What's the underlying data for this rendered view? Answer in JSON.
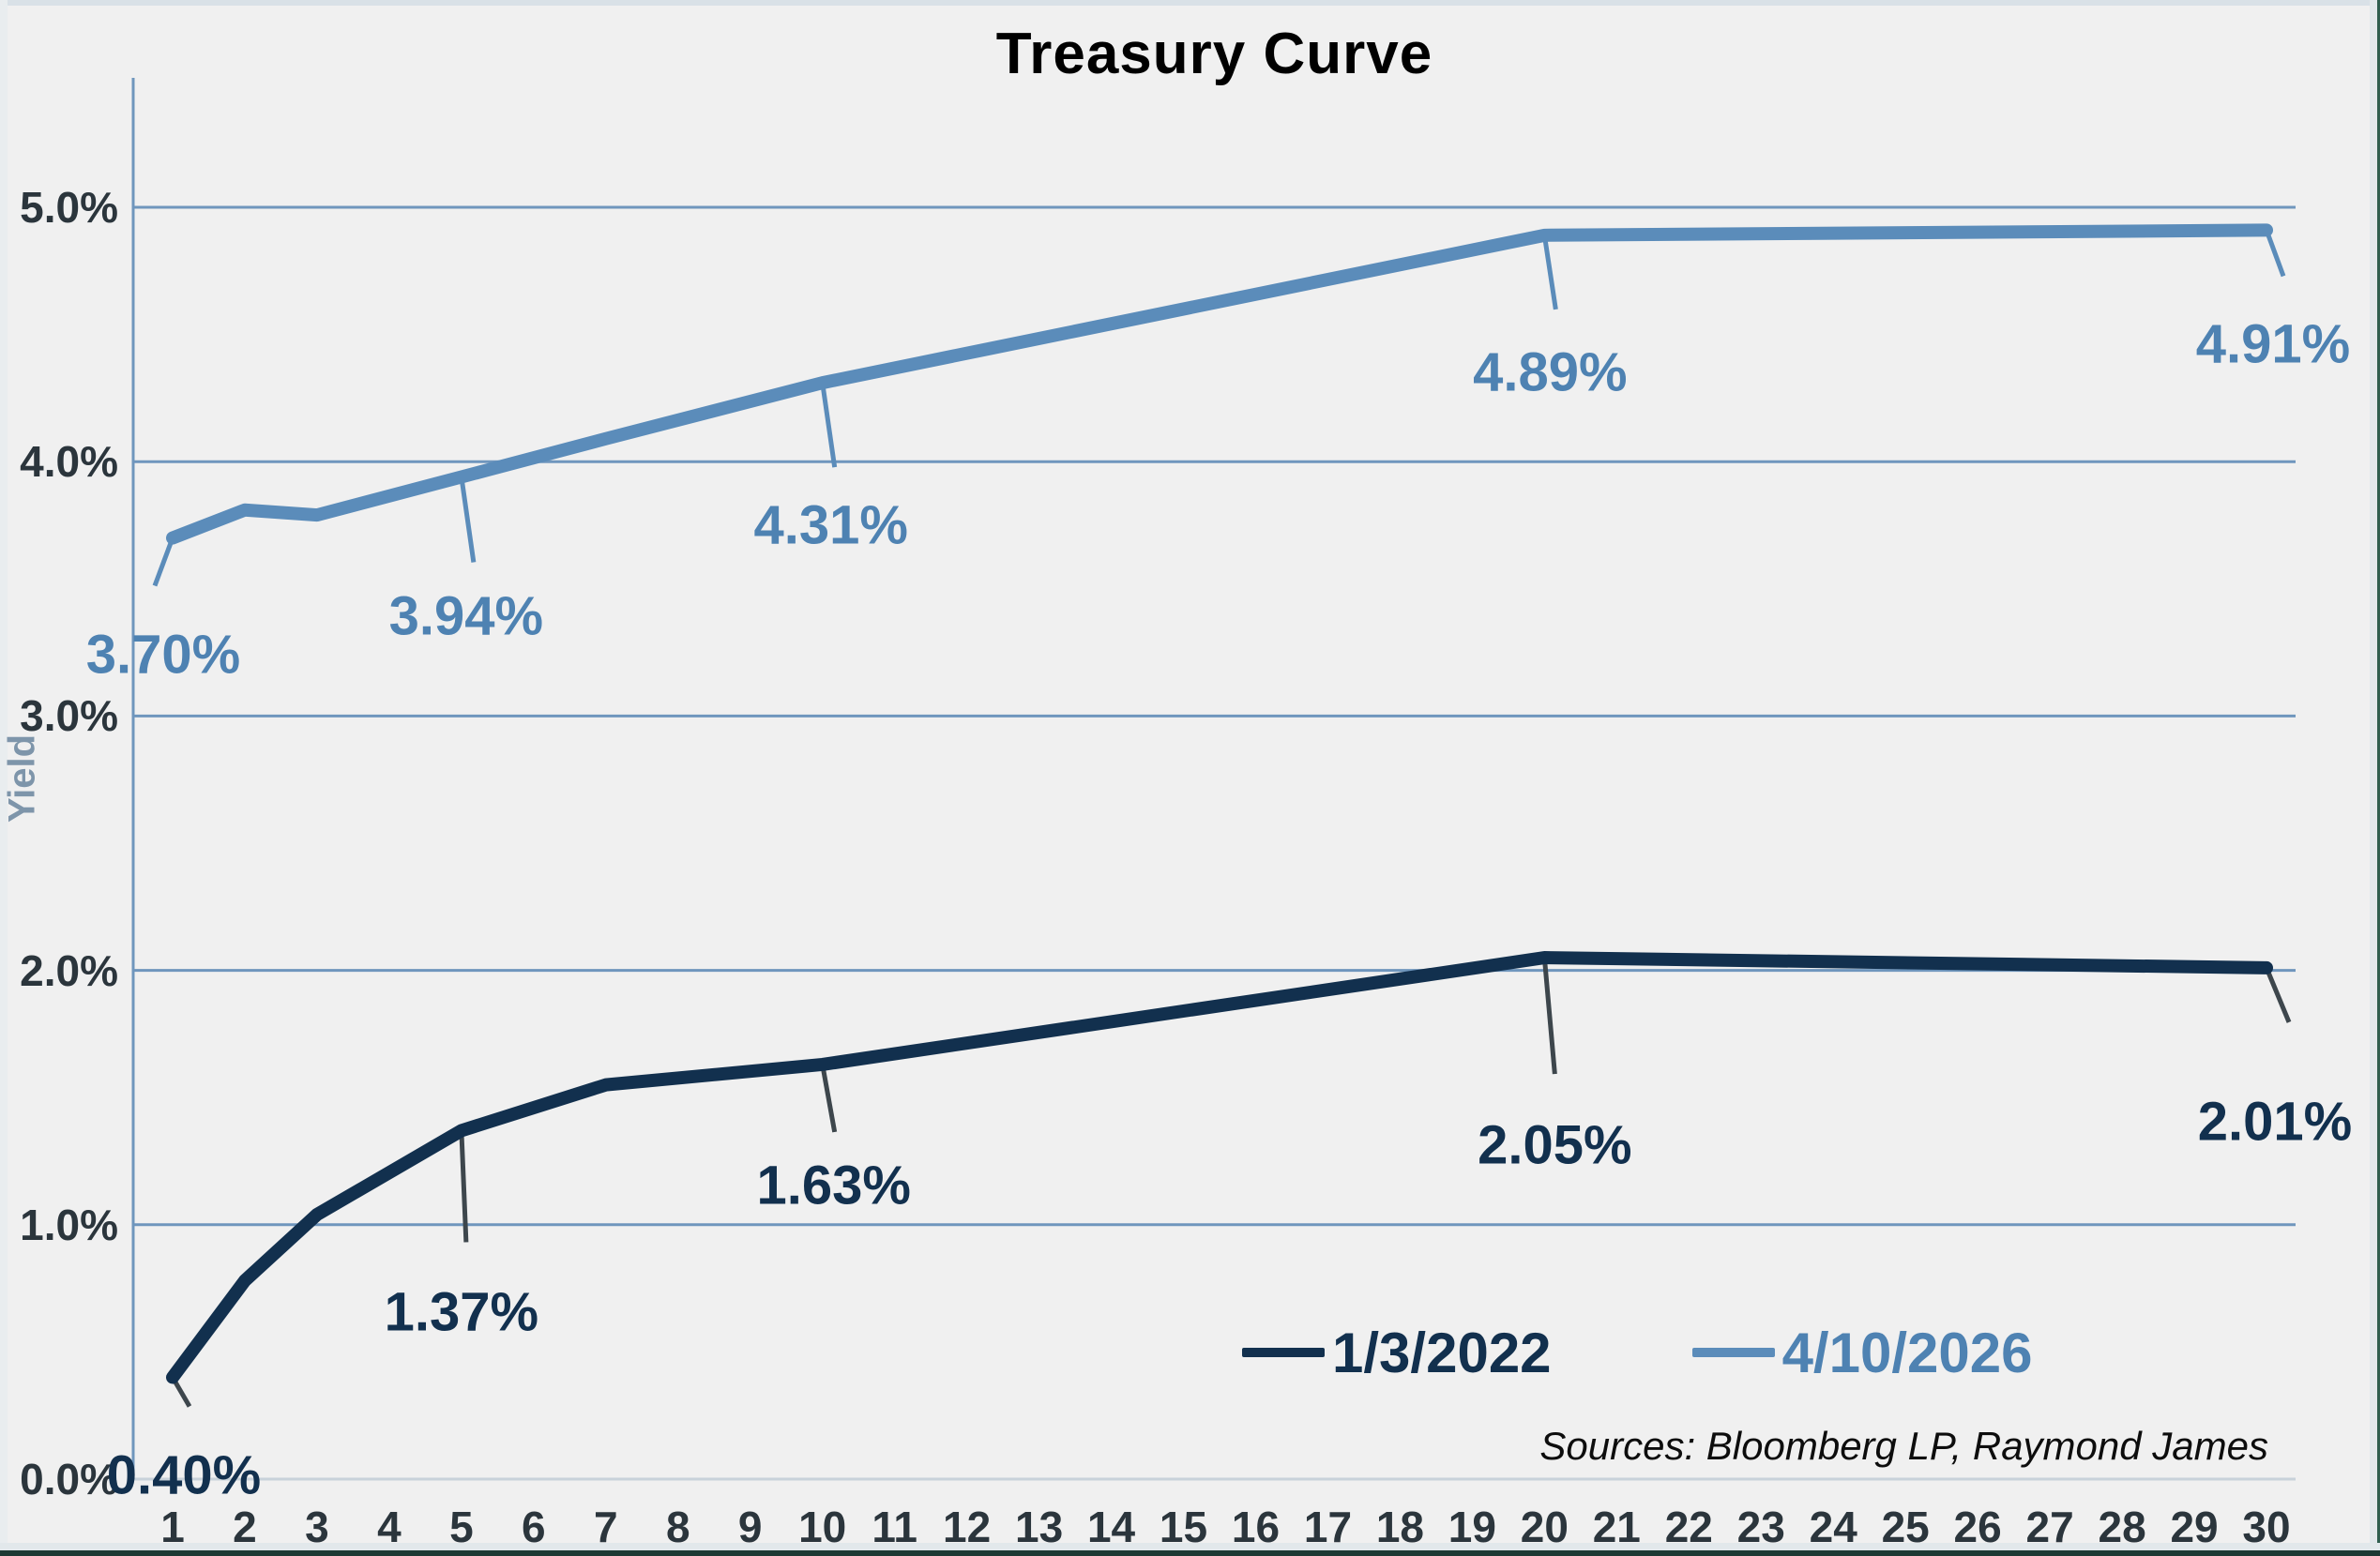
{
  "title": "Treasury Curve",
  "y_axis": {
    "label": "Yield",
    "ticks": [
      "5.0%",
      "4.0%",
      "3.0%",
      "2.0%",
      "1.0%",
      "0.0%"
    ],
    "tick_values": [
      5,
      4,
      3,
      2,
      1,
      0
    ]
  },
  "x_axis": {
    "ticks": [
      "1",
      "2",
      "3",
      "4",
      "5",
      "6",
      "7",
      "8",
      "9",
      "10",
      "11",
      "12",
      "13",
      "14",
      "15",
      "16",
      "17",
      "18",
      "19",
      "20",
      "21",
      "22",
      "23",
      "24",
      "25",
      "26",
      "27",
      "28",
      "29",
      "30"
    ]
  },
  "legend": [
    {
      "label": "1/3/2022",
      "color": "#12304e"
    },
    {
      "label": "4/10/2026",
      "color": "#5b8cba"
    }
  ],
  "sources": "Sources: Bloomberg LP, Raymond James",
  "colors": {
    "background": "#f0f0f0",
    "gridline": "#6f96bd",
    "baseline": "#c8d2da",
    "axis": "#6f96bd",
    "tick_text": "#2b353c",
    "navy_series": "#12304e",
    "blue_series": "#5b8cba",
    "blue_label_text": "#4e82b2",
    "yield_label": "#7e95aa",
    "navy_leader": "#3d464c"
  },
  "chart_data": {
    "type": "line",
    "title": "Treasury Curve",
    "xlabel": "",
    "ylabel": "Yield",
    "x_axis_range": [
      1,
      30
    ],
    "ylim": [
      0,
      5.5
    ],
    "ytick_values_percent": [
      0,
      1,
      2,
      3,
      4,
      5
    ],
    "grid": true,
    "legend_position": "bottom-right-inside",
    "x_maturities": [
      1,
      2,
      3,
      5,
      7,
      10,
      20,
      30
    ],
    "series": [
      {
        "name": "1/3/2022",
        "color": "#12304e",
        "values": [
          0.4,
          0.78,
          1.04,
          1.37,
          1.55,
          1.63,
          2.05,
          2.01
        ],
        "point_labels": [
          {
            "x": 1,
            "text": "0.40%"
          },
          {
            "x": 5,
            "text": "1.37%"
          },
          {
            "x": 10,
            "text": "1.63%"
          },
          {
            "x": 20,
            "text": "2.05%"
          },
          {
            "x": 30,
            "text": "2.01%"
          }
        ]
      },
      {
        "name": "4/10/2026",
        "color": "#5b8cba",
        "values": [
          3.7,
          3.81,
          3.79,
          3.94,
          4.09,
          4.31,
          4.89,
          4.91
        ],
        "point_labels": [
          {
            "x": 1,
            "text": "3.70%"
          },
          {
            "x": 5,
            "text": "3.94%"
          },
          {
            "x": 10,
            "text": "4.31%"
          },
          {
            "x": 20,
            "text": "4.89%"
          },
          {
            "x": 30,
            "text": "4.91%"
          }
        ]
      }
    ]
  }
}
